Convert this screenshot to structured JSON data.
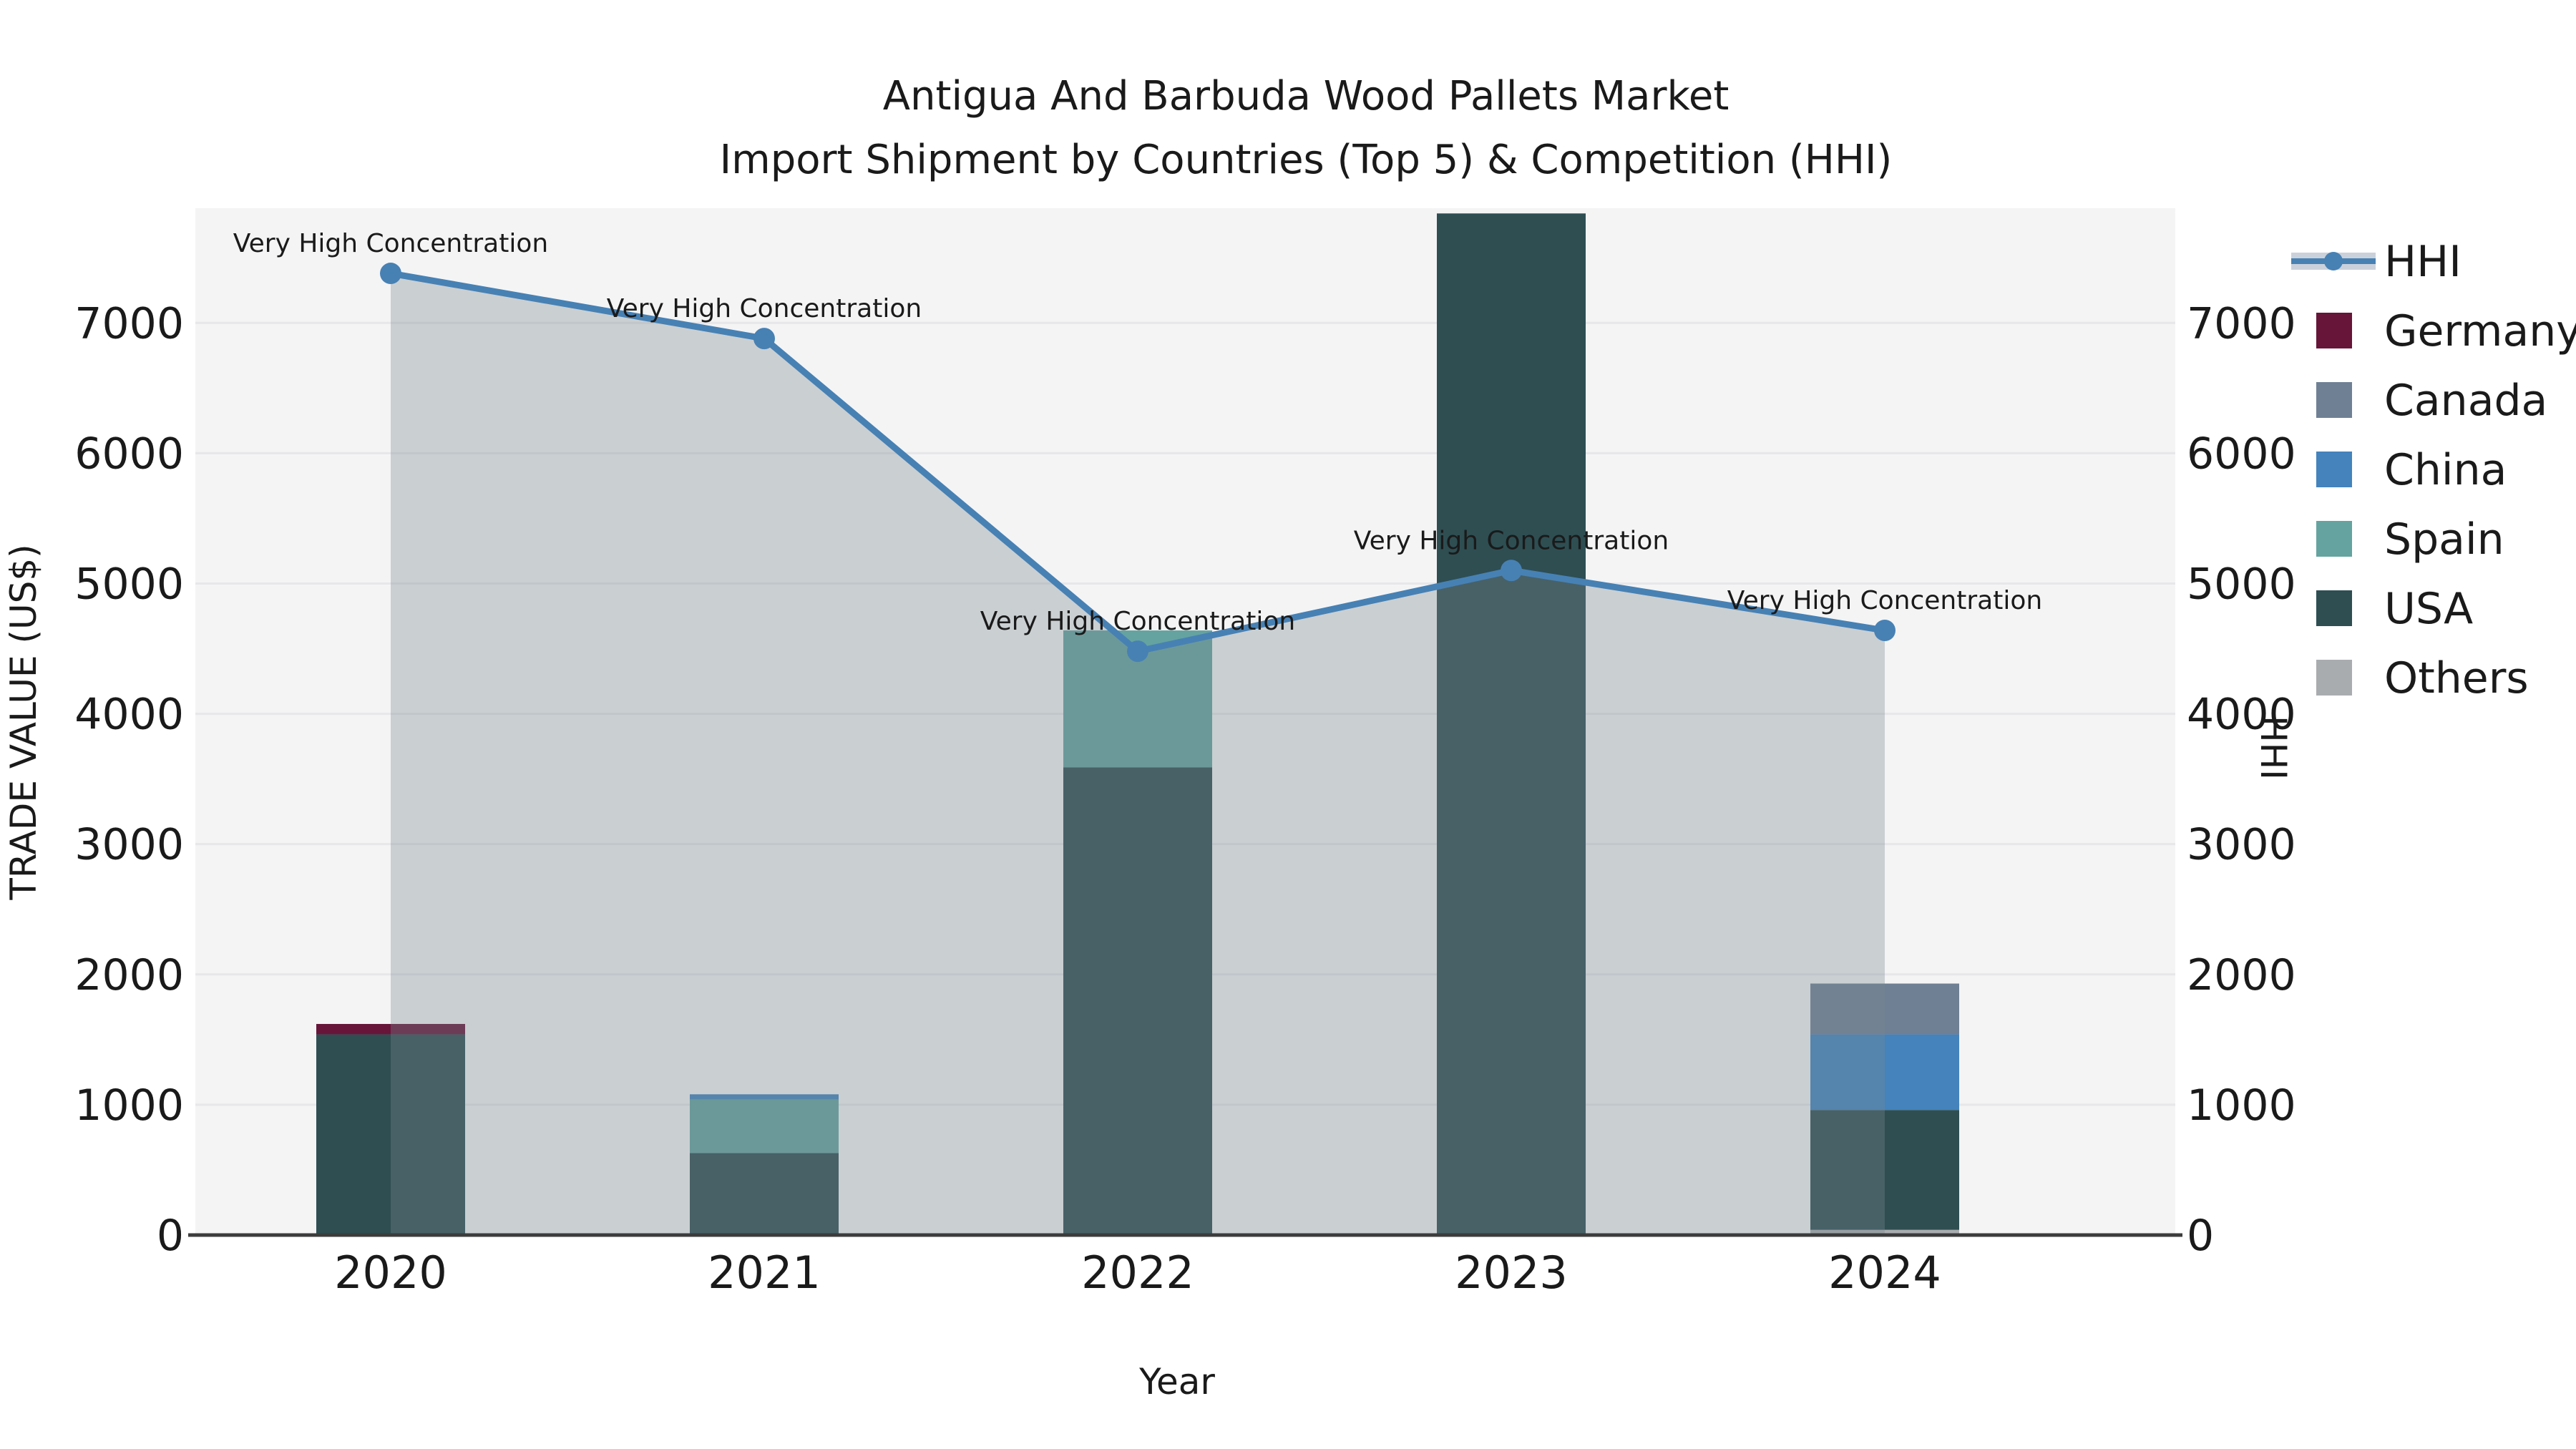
{
  "chart_data": {
    "type": "bar+line",
    "title_line1": "Antigua And Barbuda Wood Pallets Market",
    "title_line2": "Import Shipment by Countries (Top 5) & Competition (HHI)",
    "categories": [
      "2020",
      "2021",
      "2022",
      "2023",
      "2024"
    ],
    "series": [
      {
        "name": "Germany",
        "color": "#671539",
        "values": [
          80,
          0,
          0,
          0,
          0
        ]
      },
      {
        "name": "Canada",
        "color": "#6F8094",
        "values": [
          0,
          0,
          0,
          0,
          390
        ]
      },
      {
        "name": "China",
        "color": "#4483BC",
        "values": [
          0,
          40,
          0,
          0,
          580
        ]
      },
      {
        "name": "Spain",
        "color": "#65A3A0",
        "values": [
          0,
          410,
          1050,
          0,
          0
        ]
      },
      {
        "name": "USA",
        "color": "#2E4E52",
        "values": [
          1540,
          630,
          3590,
          7840,
          920
        ]
      },
      {
        "name": "Others",
        "color": "#A9ACAE",
        "values": [
          0,
          0,
          0,
          0,
          40
        ]
      }
    ],
    "stack_order": [
      "Others",
      "USA",
      "Spain",
      "China",
      "Canada",
      "Germany"
    ],
    "hhi": {
      "name": "HHI",
      "line_color": "#4781B4",
      "area_fill": "rgba(120,136,145,0.34)",
      "legend_band_color": "#CBD1DA",
      "values": [
        7380,
        6880,
        4480,
        5100,
        4640
      ]
    },
    "annotations": [
      "Very High Concentration",
      "Very High Concentration",
      "Very High Concentration",
      "Very High Concentration",
      "Very High Concentration"
    ],
    "axes": {
      "left_label": "TRADE VALUE (US$)",
      "right_label": "HHI",
      "x_label": "Year",
      "yticks": [
        0,
        1000,
        2000,
        3000,
        4000,
        5000,
        6000,
        7000
      ],
      "y_max": 7880
    },
    "colors": {
      "plot_bg": "#F4F4F5",
      "gridline": "#E7E7EA",
      "axis_line": "#3C3C3C",
      "text": "#1a1a1a"
    },
    "legend_position": "right"
  }
}
